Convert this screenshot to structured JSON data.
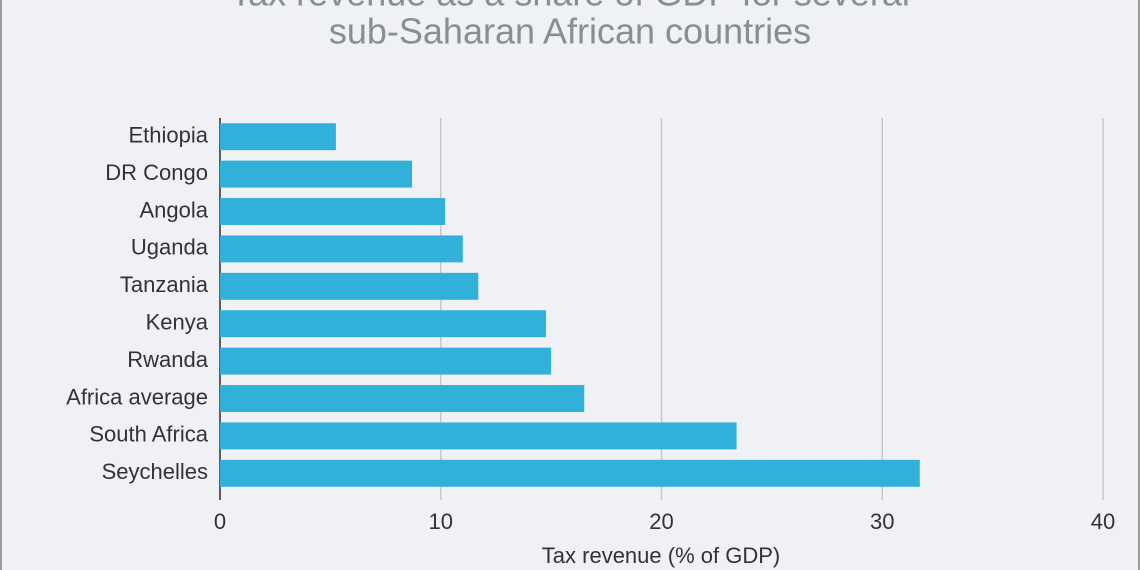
{
  "chart_data": {
    "type": "bar",
    "orientation": "horizontal",
    "title": [
      "Tax revenue as a share of GDP for several",
      "sub-Saharan African countries"
    ],
    "x_label": "Tax revenue (% of GDP)",
    "categories": [
      "Ethiopia",
      "DR Congo",
      "Angola",
      "Uganda",
      "Tanzania",
      "Kenya",
      "Rwanda",
      "Africa average",
      "South Africa",
      "Seychelles"
    ],
    "values": [
      5.25,
      8.7,
      10.2,
      11.0,
      11.7,
      14.77,
      15.0,
      16.5,
      23.4,
      31.7
    ],
    "color": "#31b0da",
    "xlim": [
      0,
      40
    ],
    "xticks": [
      0,
      10,
      20,
      30,
      40
    ],
    "grid": true
  }
}
